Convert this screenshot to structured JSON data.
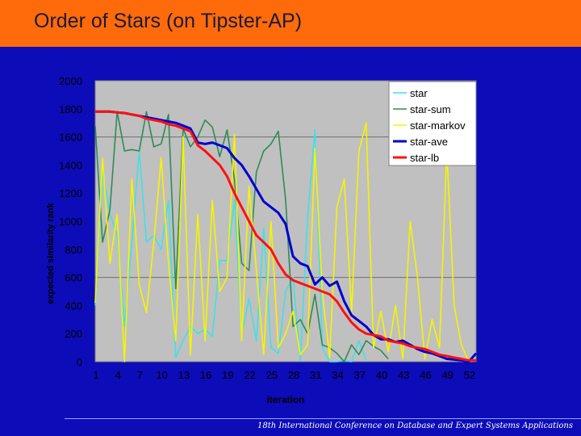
{
  "slide": {
    "title": "Order of Stars (on Tipster-AP)",
    "footer": "18th International Conference on Database and Expert Systems Applications"
  },
  "colors": {
    "background": "#0c0cb8",
    "title_bar": "#ff6b0a",
    "plot_area": "#c0c0c0"
  },
  "chart_data": {
    "type": "line",
    "xlabel": "iteration",
    "ylabel": "expected similarity rank",
    "ylim": [
      0,
      2000
    ],
    "yticks": [
      0,
      200,
      400,
      600,
      800,
      1000,
      1200,
      1400,
      1600,
      1800,
      2000
    ],
    "xlim": [
      1,
      53
    ],
    "xticks": [
      1,
      4,
      7,
      10,
      13,
      16,
      19,
      22,
      25,
      28,
      31,
      34,
      37,
      40,
      43,
      46,
      49,
      52
    ],
    "grid": "horizontal lines at 600 and 1600",
    "legend": "top-right",
    "series": [
      {
        "name": "star",
        "color": "#40e0e8",
        "x": [
          1,
          2,
          3,
          4,
          5,
          6,
          7,
          8,
          9,
          10,
          11,
          12,
          13,
          14,
          15,
          16,
          17,
          18,
          19,
          20,
          21,
          22,
          23,
          24,
          25,
          26,
          27,
          28,
          29,
          30,
          31,
          32,
          33,
          34,
          35,
          36,
          37,
          38
        ],
        "values": [
          400,
          1350,
          1050,
          900,
          250,
          850,
          1500,
          850,
          900,
          800,
          1150,
          30,
          150,
          250,
          200,
          230,
          180,
          720,
          720,
          1150,
          200,
          450,
          150,
          950,
          100,
          60,
          500,
          600,
          10,
          1030,
          1650,
          100,
          0,
          0,
          10,
          0,
          150,
          10
        ]
      },
      {
        "name": "star-sum",
        "color": "#2e8b57",
        "x": [
          1,
          2,
          3,
          4,
          5,
          6,
          7,
          8,
          9,
          10,
          11,
          12,
          13,
          14,
          15,
          16,
          17,
          18,
          19,
          20,
          21,
          22,
          23,
          24,
          25,
          26,
          27,
          28,
          29,
          30,
          31,
          32,
          33,
          34,
          35,
          36,
          37,
          38,
          39,
          40,
          41
        ],
        "values": [
          1680,
          850,
          1080,
          1780,
          1500,
          1510,
          1500,
          1780,
          1530,
          1550,
          1760,
          520,
          1660,
          1530,
          1600,
          1720,
          1670,
          1460,
          1650,
          1300,
          700,
          650,
          1350,
          1500,
          1550,
          1640,
          1150,
          250,
          300,
          200,
          480,
          120,
          100,
          60,
          0,
          120,
          50,
          150,
          110,
          80,
          20
        ]
      },
      {
        "name": "star-markov",
        "color": "#f5f500",
        "x": [
          1,
          2,
          3,
          4,
          5,
          6,
          7,
          8,
          9,
          10,
          11,
          12,
          13,
          14,
          15,
          16,
          17,
          18,
          19,
          20,
          21,
          22,
          23,
          24,
          25,
          26,
          27,
          28,
          29,
          30,
          31,
          32,
          33,
          34,
          35,
          36,
          37,
          38,
          39,
          40,
          41,
          42,
          43,
          44,
          45,
          46,
          47,
          48,
          49,
          50,
          51,
          52,
          53
        ],
        "values": [
          420,
          1450,
          700,
          1050,
          0,
          1300,
          550,
          350,
          850,
          1450,
          700,
          150,
          1600,
          50,
          1050,
          150,
          1150,
          500,
          600,
          1620,
          150,
          1250,
          650,
          50,
          1000,
          100,
          200,
          360,
          50,
          120,
          1520,
          500,
          30,
          1100,
          1300,
          350,
          1500,
          1700,
          100,
          360,
          70,
          400,
          20,
          1000,
          600,
          20,
          300,
          100,
          1500,
          400,
          120,
          0,
          10
        ]
      },
      {
        "name": "star-ave",
        "color": "#0000d0",
        "x": [
          1,
          2,
          3,
          4,
          5,
          6,
          7,
          8,
          9,
          10,
          11,
          12,
          13,
          14,
          15,
          16,
          17,
          18,
          19,
          20,
          21,
          22,
          23,
          24,
          25,
          26,
          27,
          28,
          29,
          30,
          31,
          32,
          33,
          34,
          35,
          36,
          37,
          38,
          39,
          40,
          41,
          42,
          43,
          44,
          45,
          46,
          47,
          48,
          49,
          50,
          51,
          52,
          53
        ],
        "values": [
          1780,
          1780,
          1780,
          1775,
          1770,
          1760,
          1750,
          1740,
          1730,
          1720,
          1710,
          1700,
          1680,
          1660,
          1560,
          1550,
          1560,
          1540,
          1520,
          1450,
          1400,
          1320,
          1230,
          1140,
          1100,
          1060,
          980,
          750,
          700,
          680,
          550,
          600,
          540,
          570,
          430,
          330,
          290,
          250,
          190,
          160,
          160,
          140,
          150,
          120,
          90,
          70,
          60,
          40,
          20,
          15,
          10,
          0,
          60
        ]
      },
      {
        "name": "star-lb",
        "color": "#ff1010",
        "x": [
          1,
          2,
          3,
          4,
          5,
          6,
          7,
          8,
          9,
          10,
          11,
          12,
          13,
          14,
          15,
          16,
          17,
          18,
          19,
          20,
          21,
          22,
          23,
          24,
          25,
          26,
          27,
          28,
          29,
          30,
          31,
          32,
          33,
          34,
          35,
          36,
          37,
          38,
          39,
          40,
          41,
          42,
          43,
          44,
          45,
          46,
          47,
          48,
          49,
          50,
          51,
          52,
          53
        ],
        "values": [
          1780,
          1780,
          1780,
          1775,
          1770,
          1760,
          1750,
          1730,
          1720,
          1710,
          1690,
          1680,
          1660,
          1640,
          1540,
          1500,
          1450,
          1400,
          1320,
          1200,
          1100,
          1000,
          900,
          850,
          800,
          700,
          620,
          580,
          560,
          540,
          520,
          500,
          480,
          430,
          350,
          280,
          230,
          200,
          190,
          180,
          150,
          140,
          130,
          110,
          100,
          90,
          70,
          50,
          40,
          30,
          20,
          10,
          10
        ]
      }
    ]
  }
}
